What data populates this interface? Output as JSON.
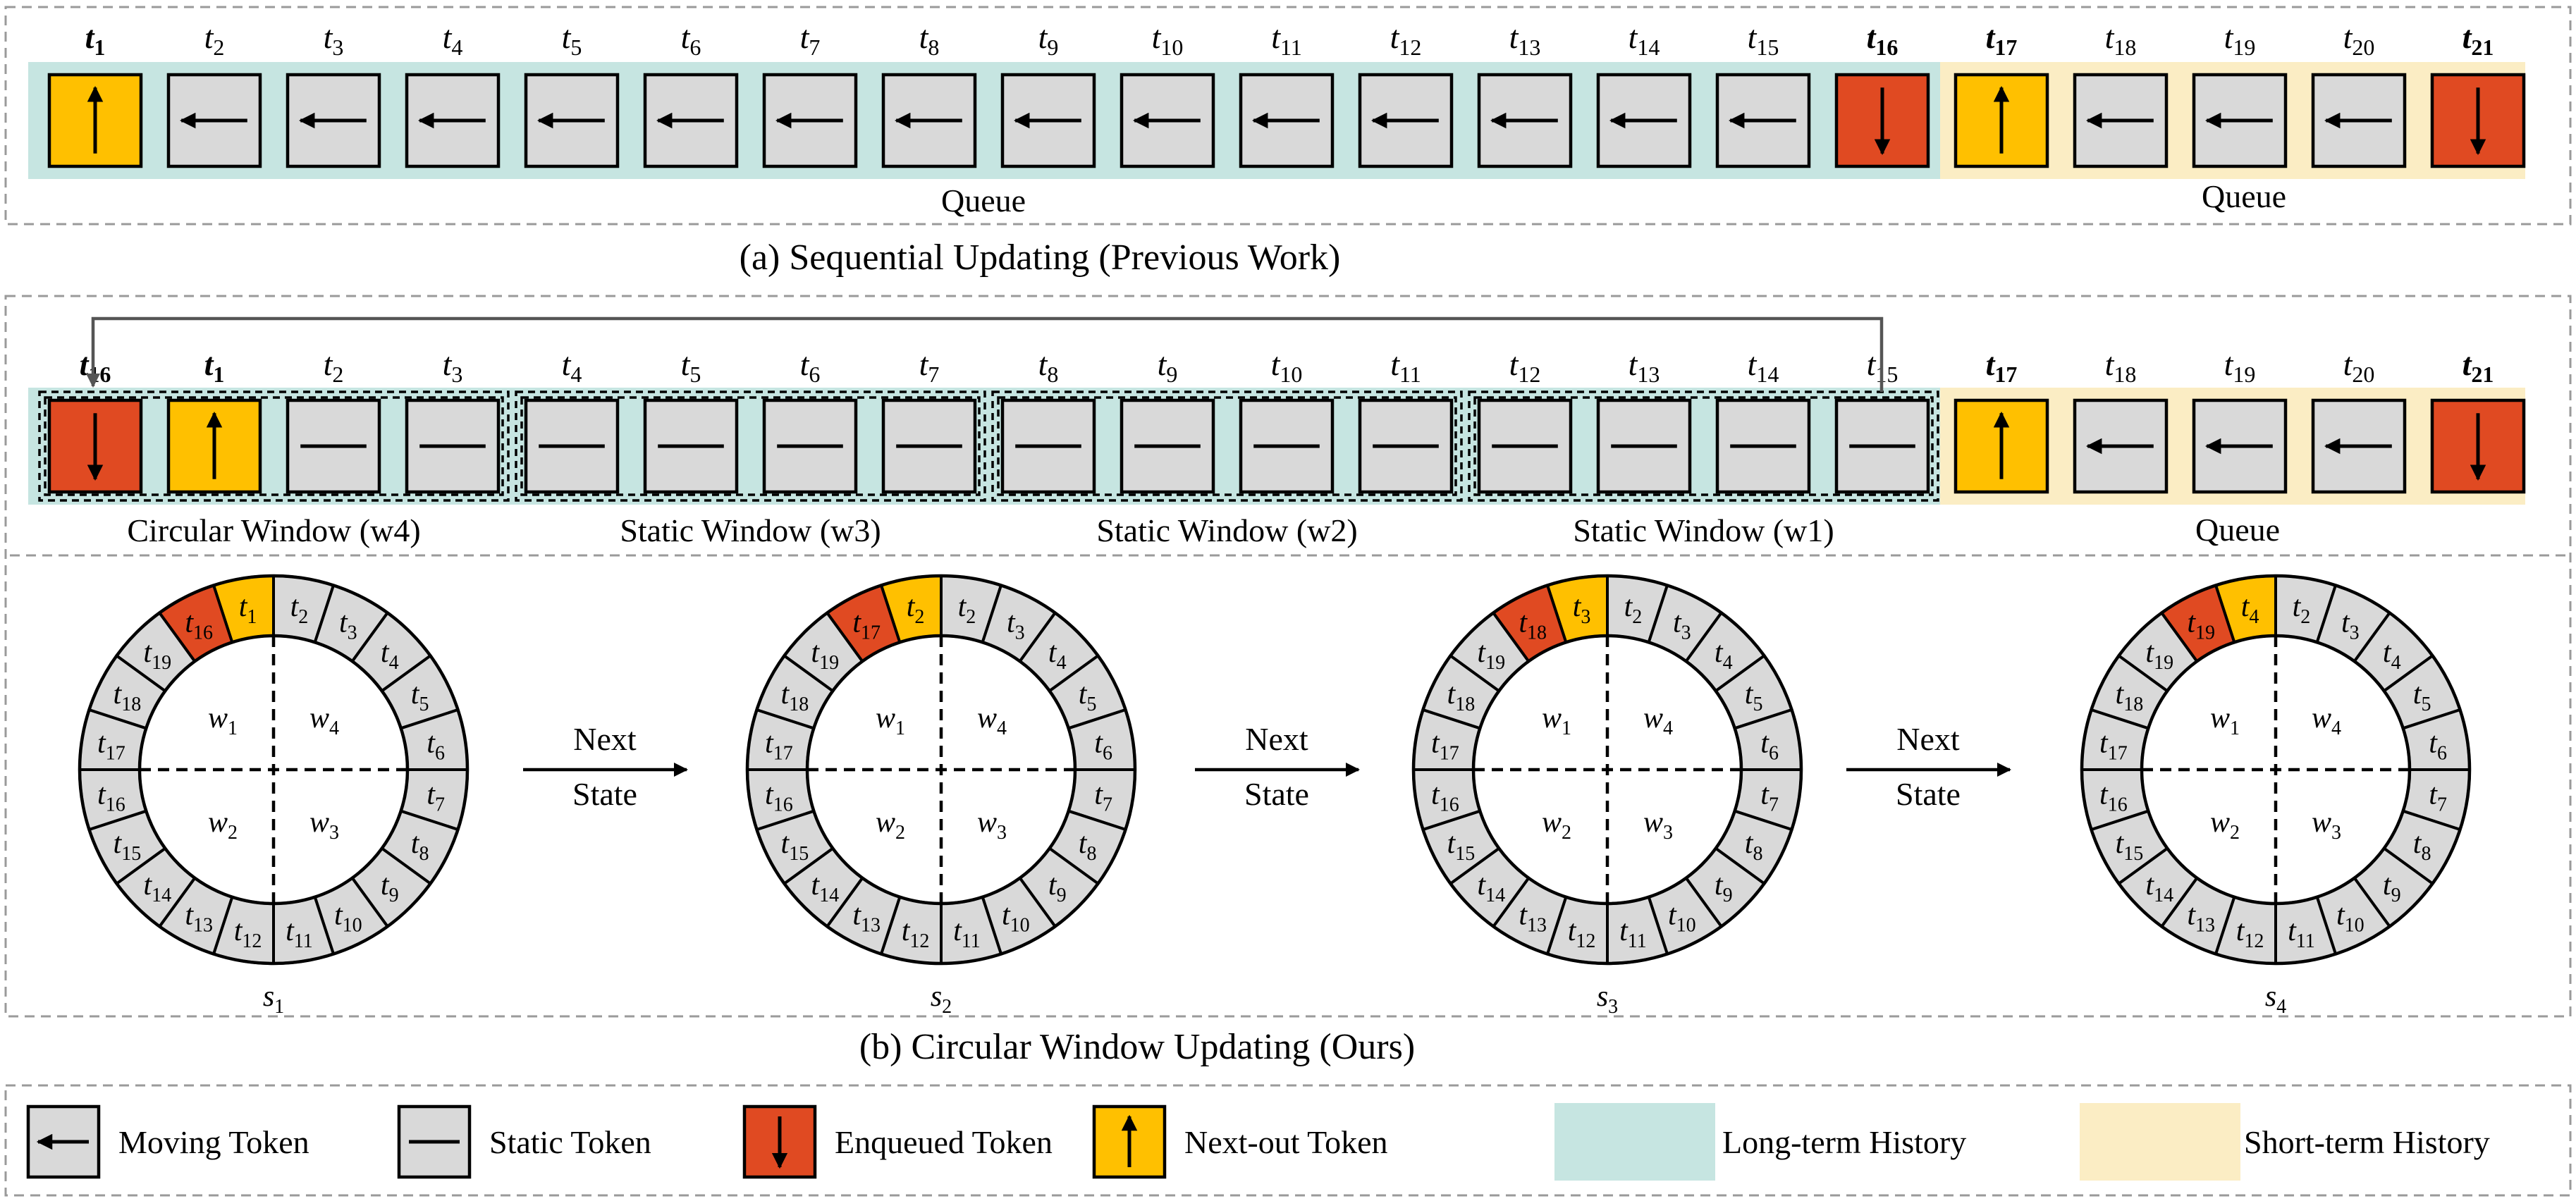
{
  "colors": {
    "moving": "#d9d9d9",
    "static": "#d9d9d9",
    "enqueued": "#e04a22",
    "next_out": "#ffc000",
    "long_term": "#c6e5e1",
    "short_term": "#fbedc4"
  },
  "panel_a": {
    "caption": "(a) Sequential Updating (Previous Work)",
    "labels": [
      "t1",
      "t2",
      "t3",
      "t4",
      "t5",
      "t6",
      "t7",
      "t8",
      "t9",
      "t10",
      "t11",
      "t12",
      "t13",
      "t14",
      "t15",
      "t16",
      "t17",
      "t18",
      "t19",
      "t20",
      "t21"
    ],
    "types": [
      "next_out",
      "moving",
      "moving",
      "moving",
      "moving",
      "moving",
      "moving",
      "moving",
      "moving",
      "moving",
      "moving",
      "moving",
      "moving",
      "moving",
      "moving",
      "enqueued",
      "next_out",
      "moving",
      "moving",
      "moving",
      "enqueued"
    ],
    "bold": [
      1,
      16,
      17,
      21
    ],
    "long_queue_label": "Queue",
    "short_queue_label": "Queue"
  },
  "panel_b": {
    "caption": "(b) Circular  Window Updating (Ours)",
    "labels": [
      "t16",
      "t1",
      "t2",
      "t3",
      "t4",
      "t5",
      "t6",
      "t7",
      "t8",
      "t9",
      "t10",
      "t11",
      "t12",
      "t13",
      "t14",
      "t15",
      "t17",
      "t18",
      "t19",
      "t20",
      "t21"
    ],
    "types": [
      "enqueued",
      "next_out",
      "static",
      "static",
      "static",
      "static",
      "static",
      "static",
      "static",
      "static",
      "static",
      "static",
      "static",
      "static",
      "static",
      "static",
      "next_out",
      "moving",
      "moving",
      "moving",
      "enqueued"
    ],
    "bold": [
      16,
      1,
      17,
      21
    ],
    "windows": [
      "Circular Window (w4)",
      "Static Window (w3)",
      "Static Window (w2)",
      "Static Window (w1)"
    ],
    "queue_label": "Queue",
    "next_state_lines": [
      "Next",
      "State"
    ],
    "rings": [
      {
        "state": "s1",
        "red": 16,
        "yellow": 1
      },
      {
        "state": "s2",
        "red": 17,
        "yellow": 2
      },
      {
        "state": "s3",
        "red": 18,
        "yellow": 3
      },
      {
        "state": "s4",
        "red": 19,
        "yellow": 4
      }
    ]
  },
  "legend": [
    {
      "icon": "moving",
      "label": "Moving Token"
    },
    {
      "icon": "static",
      "label": "Static Token"
    },
    {
      "icon": "enqueued",
      "label": "Enqueued Token"
    },
    {
      "icon": "next_out",
      "label": "Next-out Token"
    },
    {
      "icon": "long_term",
      "label": "Long-term History"
    },
    {
      "icon": "short_term",
      "label": "Short-term History"
    }
  ]
}
